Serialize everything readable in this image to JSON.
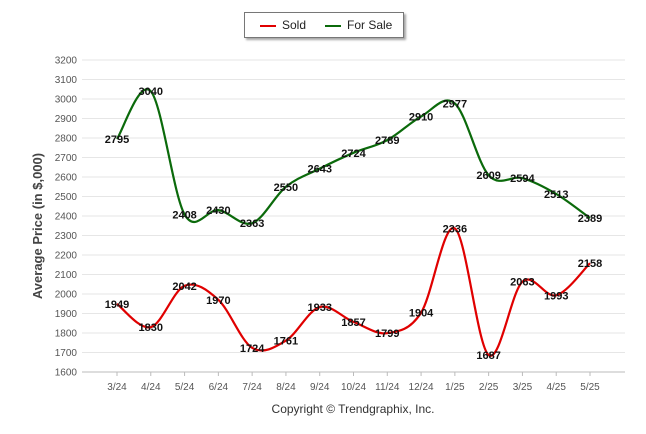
{
  "chart_data": {
    "type": "line",
    "categories": [
      "3/24",
      "4/24",
      "5/24",
      "6/24",
      "7/24",
      "8/24",
      "9/24",
      "10/24",
      "11/24",
      "12/24",
      "1/25",
      "2/25",
      "3/25",
      "4/25",
      "5/25"
    ],
    "series": [
      {
        "name": "Sold",
        "color": "#e00000",
        "values": [
          1949,
          1830,
          2042,
          1970,
          1724,
          1761,
          1933,
          1857,
          1799,
          1904,
          2336,
          1687,
          2063,
          1993,
          2158
        ]
      },
      {
        "name": "For Sale",
        "color": "#0b6a0b",
        "values": [
          2795,
          3040,
          2408,
          2430,
          2363,
          2550,
          2643,
          2724,
          2789,
          2910,
          2977,
          2609,
          2594,
          2513,
          2389
        ]
      }
    ],
    "ylabel": "Average Price (in $,000)",
    "xlabel": "",
    "ylim": [
      1600,
      3200
    ],
    "yticks": [
      1600,
      1700,
      1800,
      1900,
      2000,
      2100,
      2200,
      2300,
      2400,
      2500,
      2600,
      2700,
      2800,
      2900,
      3000,
      3100,
      3200
    ],
    "grid": true,
    "legend_position": "top-center"
  },
  "legend": {
    "sold_label": "Sold",
    "for_sale_label": "For Sale"
  },
  "footer": {
    "credit": "Copyright © Trendgraphix, Inc."
  }
}
